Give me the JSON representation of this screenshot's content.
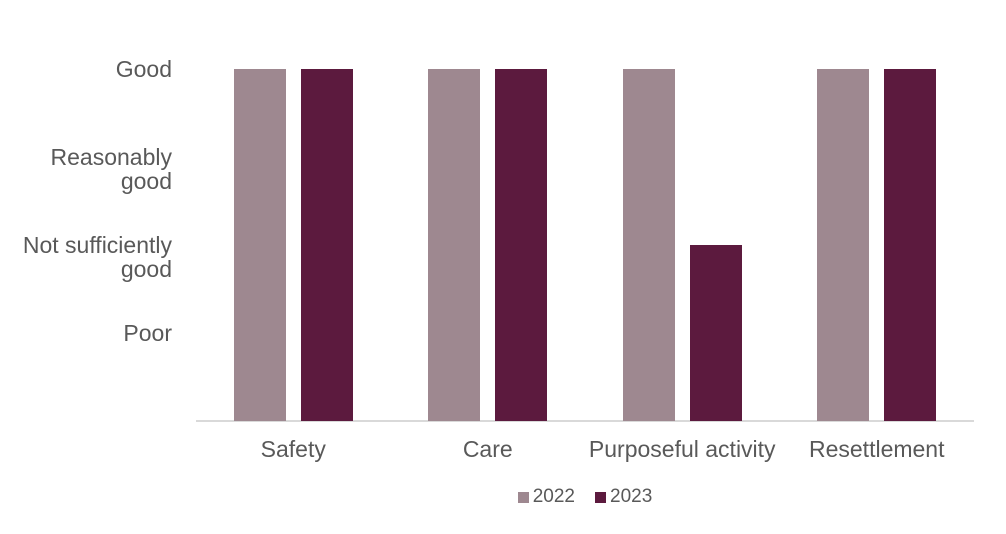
{
  "chart_data": {
    "type": "bar",
    "categories": [
      "Safety",
      "Care",
      "Purposeful activity",
      "Resettlement"
    ],
    "series": [
      {
        "name": "2022",
        "color": "#9e8890",
        "values": [
          "Good",
          "Good",
          "Good",
          "Good"
        ]
      },
      {
        "name": "2023",
        "color": "#5c1a3e",
        "values": [
          "Good",
          "Good",
          "Not sufficiently good",
          "Good"
        ]
      }
    ],
    "y_ticks": [
      {
        "label": "Good",
        "lines": [
          "Good"
        ],
        "value": 4
      },
      {
        "label": "Reasonably good",
        "lines": [
          "Reasonably",
          "good"
        ],
        "value": 3
      },
      {
        "label": "Not sufficiently good",
        "lines": [
          "Not sufficiently",
          "good"
        ],
        "value": 2
      },
      {
        "label": "Poor",
        "lines": [
          "Poor"
        ],
        "value": 1
      }
    ],
    "rating_scale": {
      "Good": 4,
      "Reasonably good": 3,
      "Not sufficiently good": 2,
      "Poor": 1
    },
    "ylim": [
      0,
      4
    ],
    "grid": false,
    "legend_position": "bottom",
    "legend_labels": [
      "2022",
      "2023"
    ],
    "colors": {
      "series_2022": "#9e8890",
      "series_2023": "#5c1a3e",
      "text": "#595959",
      "axis_line": "#d9d9d9",
      "background": "#ffffff"
    }
  }
}
